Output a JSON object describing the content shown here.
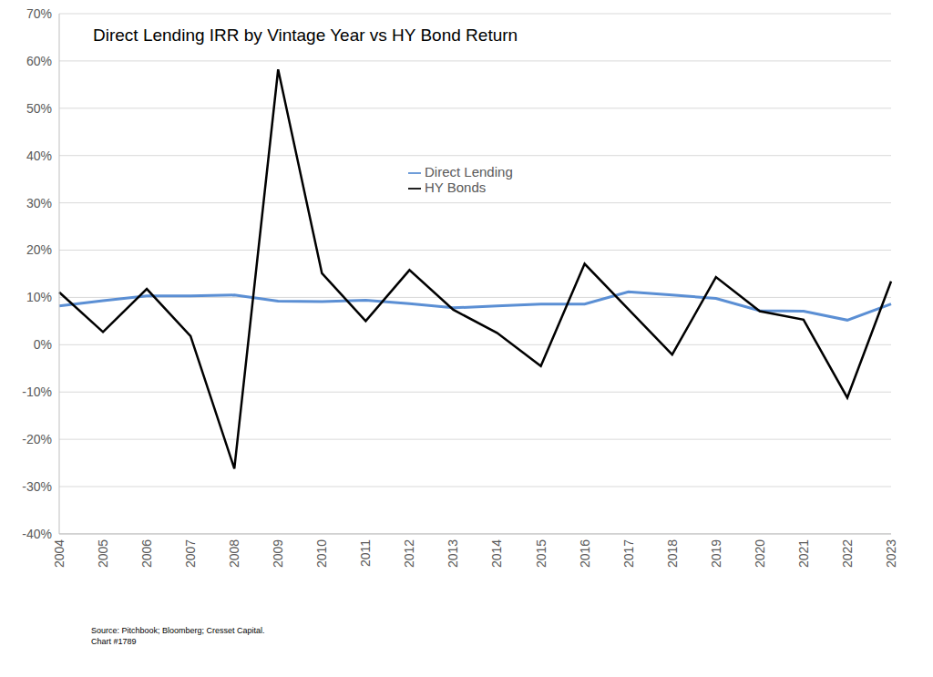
{
  "chart_data": {
    "type": "line",
    "title": "Direct Lending IRR by Vintage Year vs HY Bond Return",
    "categories": [
      "2004",
      "2005",
      "2006",
      "2007",
      "2008",
      "2009",
      "2010",
      "2011",
      "2012",
      "2013",
      "2014",
      "2015",
      "2016",
      "2017",
      "2018",
      "2019",
      "2020",
      "2021",
      "2022",
      "2023"
    ],
    "series": [
      {
        "name": "Direct Lending",
        "color": "#5b8fd4",
        "values": [
          8.2,
          9.3,
          10.3,
          10.3,
          10.5,
          9.2,
          9.1,
          9.4,
          8.7,
          7.8,
          8.2,
          8.6,
          8.6,
          11.2,
          10.5,
          9.8,
          7.2,
          7.1,
          5.2,
          8.6
        ]
      },
      {
        "name": "HY Bonds",
        "color": "#000000",
        "values": [
          11.1,
          2.7,
          11.8,
          1.8,
          -26.2,
          58.2,
          15.1,
          5.0,
          15.8,
          7.4,
          2.5,
          -4.5,
          17.1,
          7.5,
          -2.1,
          14.3,
          7.1,
          5.3,
          -11.2,
          13.4
        ]
      }
    ],
    "ylim": [
      -40,
      70
    ],
    "yticks": [
      {
        "value": -40,
        "label": "-40%"
      },
      {
        "value": -30,
        "label": "-30%"
      },
      {
        "value": -20,
        "label": "-20%"
      },
      {
        "value": -10,
        "label": "-10%"
      },
      {
        "value": 0,
        "label": "0%"
      },
      {
        "value": 10,
        "label": "10%"
      },
      {
        "value": 20,
        "label": "20%"
      },
      {
        "value": 30,
        "label": "30%"
      },
      {
        "value": 40,
        "label": "40%"
      },
      {
        "value": 50,
        "label": "50%"
      },
      {
        "value": 60,
        "label": "60%"
      },
      {
        "value": 70,
        "label": "70%"
      }
    ],
    "grid": true,
    "legend": "upper center",
    "annotations": [
      "Source: Pitchbook; Bloomberg; Cresset Capital.",
      "Chart #1789"
    ]
  }
}
